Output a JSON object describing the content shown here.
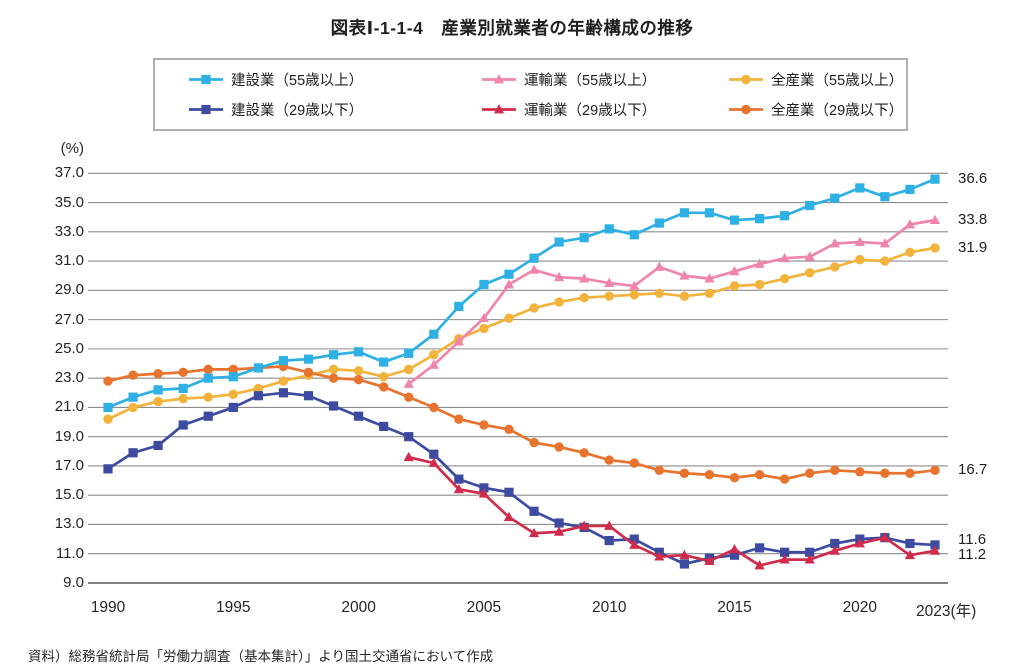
{
  "page": {
    "title": "図表Ⅰ-1-1-4　産業別就業者の年齢構成の推移",
    "source": "資料）総務省統計局「労働力調査（基本集計）」より国土交通省において作成"
  },
  "legend": {
    "items": [
      {
        "series": "construction-55",
        "label": "建設業（55歳以上）"
      },
      {
        "series": "transport-55",
        "label": "運輸業（55歳以上）"
      },
      {
        "series": "all-industry-55",
        "label": "全産業（55歳以上）"
      },
      {
        "series": "construction-29",
        "label": "建設業（29歳以下）"
      },
      {
        "series": "transport-29",
        "label": "運輸業（29歳以下）"
      },
      {
        "series": "all-industry-29",
        "label": "全産業（29歳以下）"
      }
    ]
  },
  "chart_data": {
    "type": "line",
    "title": "産業別就業者の年齢構成の推移",
    "y_axis_unit": "(%)",
    "x_axis_suffix": "(年)",
    "ylim": [
      9.0,
      37.0
    ],
    "xlim": [
      1990,
      2023
    ],
    "grid": "horizontal",
    "legend_position": "top",
    "y_ticks": [
      "37.0",
      "35.0",
      "33.0",
      "31.0",
      "29.0",
      "27.0",
      "25.0",
      "23.0",
      "21.0",
      "19.0",
      "17.0",
      "15.0",
      "13.0",
      "11.0",
      "9.0"
    ],
    "x_ticks": [
      {
        "value": 1990,
        "label": "1990"
      },
      {
        "value": 1995,
        "label": "1995"
      },
      {
        "value": 2000,
        "label": "2000"
      },
      {
        "value": 2005,
        "label": "2005"
      },
      {
        "value": 2010,
        "label": "2010"
      },
      {
        "value": 2015,
        "label": "2015"
      },
      {
        "value": 2020,
        "label": "2020"
      },
      {
        "value": 2023,
        "label": "2023",
        "suffix": "(年)"
      }
    ],
    "series": [
      {
        "id": "all-industry-55",
        "name": "全産業（55歳以上）",
        "color": "#f2b33c",
        "marker": "circle",
        "start_year": 1990,
        "values": [
          20.2,
          21.0,
          21.4,
          21.6,
          21.7,
          21.9,
          22.3,
          22.8,
          23.2,
          23.6,
          23.5,
          23.1,
          23.6,
          24.6,
          25.7,
          26.4,
          27.1,
          27.8,
          28.2,
          28.5,
          28.6,
          28.7,
          28.8,
          28.6,
          28.8,
          29.3,
          29.4,
          29.8,
          30.2,
          30.6,
          31.1,
          31.0,
          31.6,
          31.9
        ],
        "end_label": "31.9"
      },
      {
        "id": "all-industry-29",
        "name": "全産業（29歳以下）",
        "color": "#e8732e",
        "marker": "circle",
        "start_year": 1990,
        "values": [
          22.8,
          23.2,
          23.3,
          23.4,
          23.6,
          23.6,
          23.7,
          23.8,
          23.4,
          23.0,
          22.9,
          22.4,
          21.7,
          21.0,
          20.2,
          19.8,
          19.5,
          18.6,
          18.3,
          17.9,
          17.4,
          17.2,
          16.7,
          16.5,
          16.4,
          16.2,
          16.4,
          16.1,
          16.5,
          16.7,
          16.6,
          16.5,
          16.5,
          16.7
        ],
        "end_label": "16.7"
      },
      {
        "id": "transport-55",
        "name": "運輸業（55歳以上）",
        "color": "#ef85ad",
        "marker": "triangle",
        "start_year": 2002,
        "values": [
          22.6,
          23.9,
          25.5,
          27.1,
          29.4,
          30.4,
          29.9,
          29.8,
          29.5,
          29.3,
          30.6,
          30.0,
          29.8,
          30.3,
          30.8,
          31.2,
          31.3,
          32.2,
          32.3,
          32.2,
          33.5,
          33.8
        ],
        "end_label": "33.8"
      },
      {
        "id": "construction-55",
        "name": "建設業（55歳以上）",
        "color": "#2eb0e4",
        "marker": "square",
        "start_year": 1990,
        "values": [
          21.0,
          21.7,
          22.2,
          22.3,
          23.0,
          23.1,
          23.7,
          24.2,
          24.3,
          24.6,
          24.8,
          24.1,
          24.7,
          26.0,
          27.9,
          29.4,
          30.1,
          31.2,
          32.3,
          32.6,
          33.2,
          32.8,
          33.6,
          34.3,
          34.3,
          33.8,
          33.9,
          34.1,
          34.8,
          35.3,
          36.0,
          35.4,
          35.9,
          36.6
        ],
        "end_label": "36.6"
      },
      {
        "id": "construction-29",
        "name": "建設業（29歳以下）",
        "color": "#3c4b9f",
        "marker": "square",
        "start_year": 1990,
        "values": [
          16.8,
          17.9,
          18.4,
          19.8,
          20.4,
          21.0,
          21.8,
          22.0,
          21.8,
          21.1,
          20.4,
          19.7,
          19.0,
          17.8,
          16.1,
          15.5,
          15.2,
          13.9,
          13.1,
          12.8,
          11.9,
          12.0,
          11.1,
          10.3,
          10.7,
          10.9,
          11.4,
          11.1,
          11.1,
          11.7,
          12.0,
          12.1,
          11.7,
          11.6
        ],
        "end_label": "11.6"
      },
      {
        "id": "transport-29",
        "name": "運輸業（29歳以下）",
        "color": "#d02b4b",
        "marker": "triangle",
        "start_year": 2002,
        "values": [
          17.6,
          17.2,
          15.4,
          15.1,
          13.5,
          12.4,
          12.5,
          12.9,
          12.9,
          11.6,
          10.8,
          10.9,
          10.5,
          11.3,
          10.2,
          10.6,
          10.6,
          11.2,
          11.7,
          12.1,
          10.9,
          11.2
        ],
        "end_label": "11.2"
      }
    ]
  }
}
